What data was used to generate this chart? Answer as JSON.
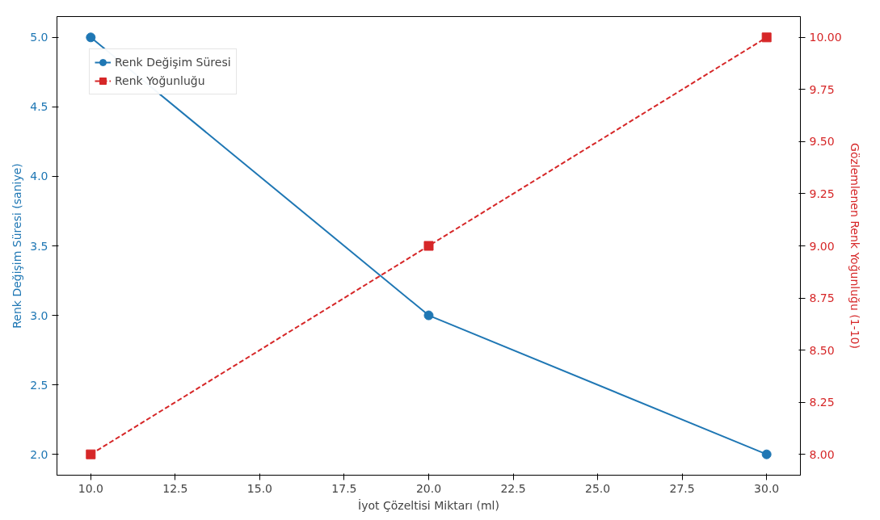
{
  "chart_data": {
    "type": "line",
    "xlabel": "İyot Çözeltisi Miktarı (ml)",
    "ylabel": "Renk Değişim Süresi (saniye)",
    "y2label": "Gözlemlenen Renk Yoğunluğu (1-10)",
    "x": [
      10,
      20,
      30
    ],
    "series": [
      {
        "name": "Renk Değişim Süresi",
        "color": "#1f77b4",
        "values": [
          5.0,
          3.0,
          2.0
        ],
        "marker": "circle",
        "line_style": "solid"
      },
      {
        "name": "Renk Yoğunluğu",
        "color": "#d62728",
        "values": [
          8.0,
          9.0,
          10.0
        ],
        "marker": "square",
        "line_style": "dashed",
        "axis": "y2"
      }
    ],
    "xlim": [
      9,
      31
    ],
    "xticks": [
      {
        "value": 10,
        "label": "10.0"
      },
      {
        "value": 12.5,
        "label": "12.5"
      },
      {
        "value": 15,
        "label": "15.0"
      },
      {
        "value": 17.5,
        "label": "17.5"
      },
      {
        "value": 20,
        "label": "20.0"
      },
      {
        "value": 22.5,
        "label": "22.5"
      },
      {
        "value": 25,
        "label": "25.0"
      },
      {
        "value": 27.5,
        "label": "27.5"
      },
      {
        "value": 30,
        "label": "30.0"
      }
    ],
    "ylim": [
      1.85,
      5.15
    ],
    "yticks": [
      {
        "value": 2,
        "label": "2.0"
      },
      2.5,
      {
        "value": 3,
        "label": "3.0"
      },
      3.5,
      {
        "value": 4,
        "label": "4.0"
      },
      4.5,
      {
        "value": 5,
        "label": "5.0"
      }
    ],
    "y2lim": [
      7.9,
      10.1
    ],
    "y2ticks": [
      {
        "value": 8,
        "label": "8.00"
      },
      8.25,
      {
        "value": 8.5,
        "label": "8.50"
      },
      8.75,
      {
        "value": 9,
        "label": "9.00"
      },
      9.25,
      {
        "value": 9.5,
        "label": "9.50"
      },
      9.75,
      {
        "value": 10,
        "label": "10.00"
      }
    ],
    "grid": false,
    "legend": "top left"
  }
}
